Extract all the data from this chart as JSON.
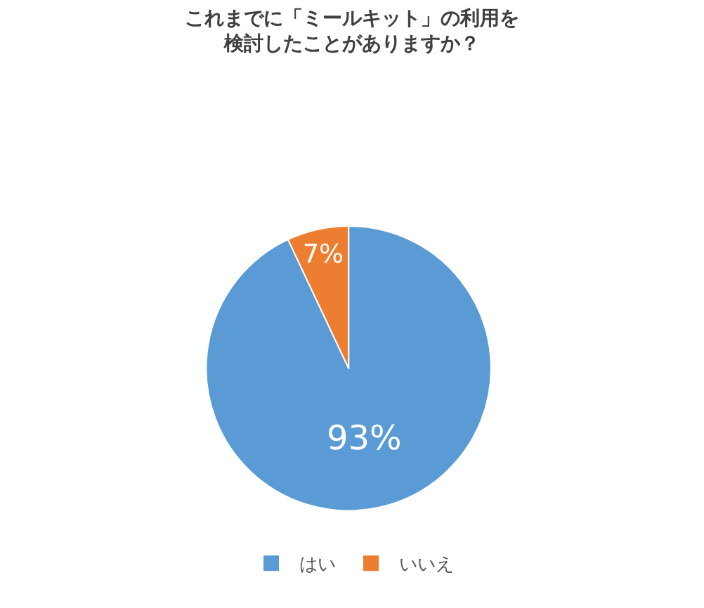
{
  "chart_data": {
    "type": "pie",
    "title": "これまでに「ミールキット」の利用を検討したことがありますか？",
    "categories": [
      "はい",
      "いいえ"
    ],
    "values": [
      93,
      7
    ],
    "colors": [
      "#5b9bd5",
      "#ed7d31"
    ],
    "value_labels": [
      "93%",
      "7%"
    ],
    "legend": "bottom"
  }
}
